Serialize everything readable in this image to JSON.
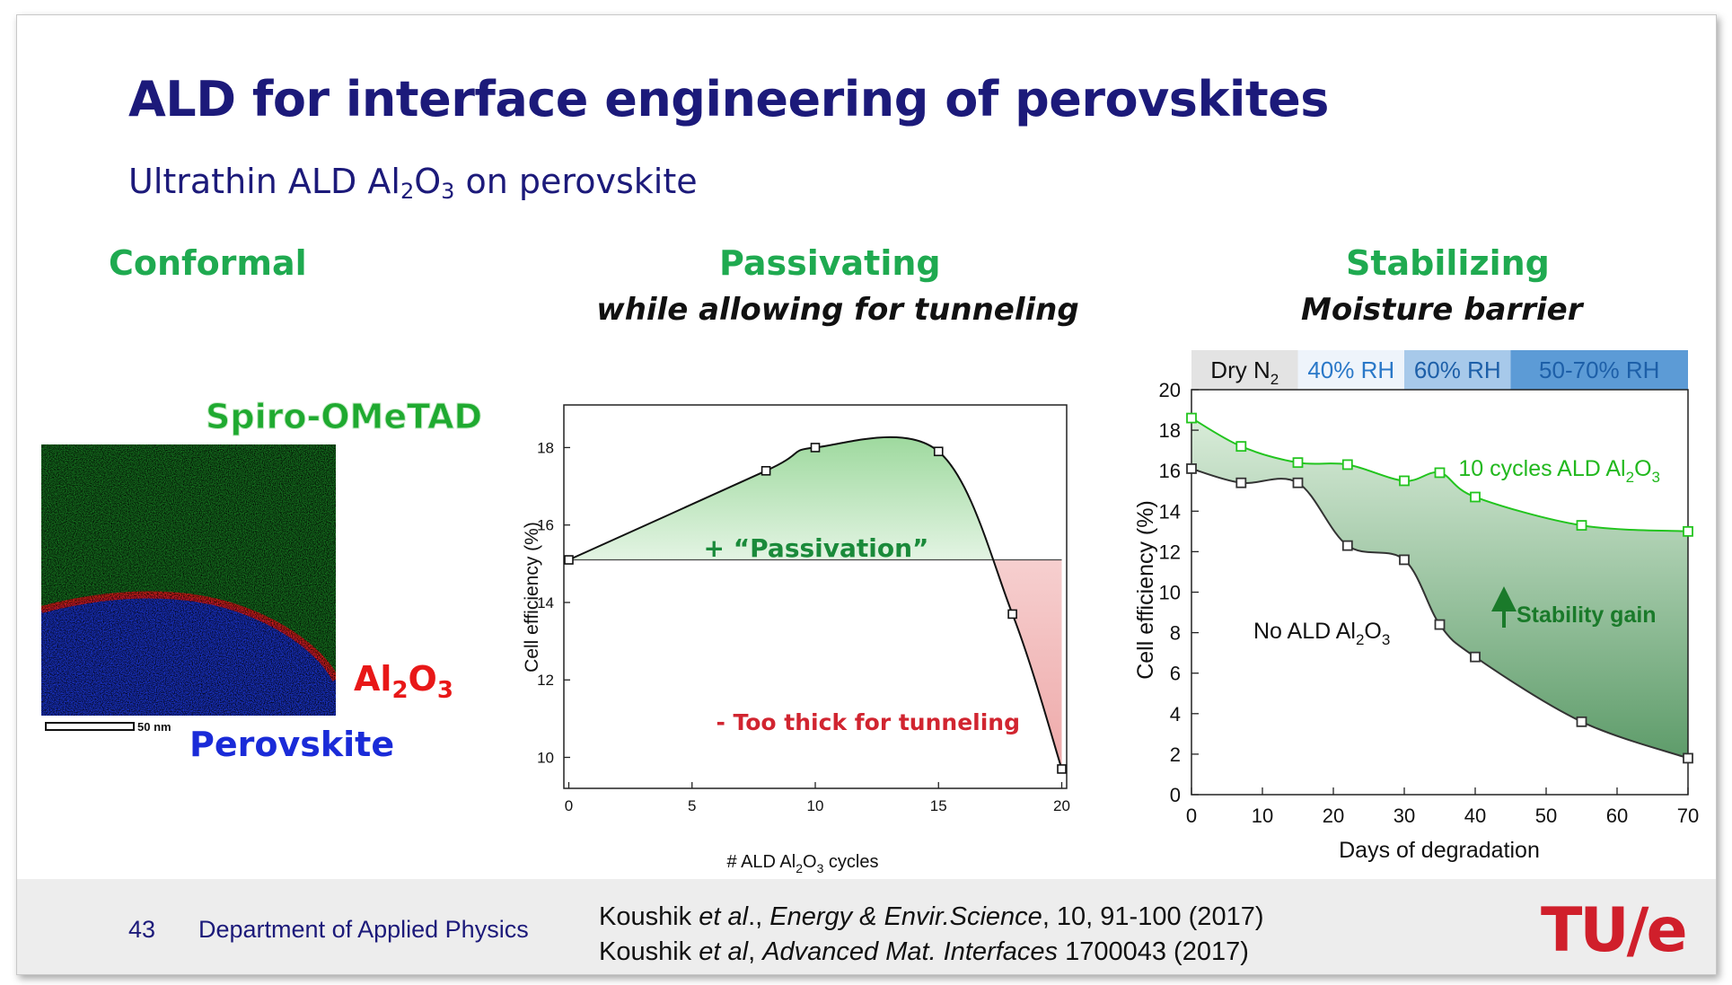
{
  "slide": {
    "title": "ALD for interface engineering of perovskites",
    "subtitle_pre": "Ultrathin ALD Al",
    "subtitle_sub1": "2",
    "subtitle_mid": "O",
    "subtitle_sub2": "3",
    "subtitle_post": " on perovskite"
  },
  "columns": {
    "conformal": {
      "heading": "Conformal"
    },
    "passivating": {
      "heading": "Passivating",
      "subheading": "while allowing for tunneling"
    },
    "stabilizing": {
      "heading": "Stabilizing",
      "subheading": "Moisture barrier"
    }
  },
  "tem_image": {
    "label_top": "Spiro-OMeTAD",
    "label_mid_pre": "Al",
    "label_mid_sub1": "2",
    "label_mid_o": "O",
    "label_mid_sub2": "3",
    "label_bottom": "Perovskite",
    "scale_bar": "50 nm",
    "colors": {
      "spiro": "#1faa30",
      "al2o3": "#e81818",
      "perovskite": "#1a2bd8"
    }
  },
  "chart_data": [
    {
      "type": "line",
      "xlabel_pre": "# ALD Al",
      "xlabel_sub1": "2",
      "xlabel_o": "O",
      "xlabel_sub2": "3",
      "xlabel_post": " cycles",
      "ylabel": "Cell efficiency (%)",
      "xlim": [
        -0.2,
        20.2
      ],
      "ylim": [
        9.2,
        19.1
      ],
      "xticks": [
        "0",
        "5",
        "10",
        "15",
        "20"
      ],
      "yticks": [
        "10",
        "12",
        "14",
        "16",
        "18"
      ],
      "x": [
        0,
        8,
        10,
        15,
        18,
        20
      ],
      "y": [
        15.1,
        17.4,
        18.0,
        17.9,
        13.7,
        9.7
      ],
      "baseline": 15.1,
      "annotations": {
        "passivation": "+ “Passivation”",
        "too_thick": "- Too thick for tunneling"
      },
      "colors": {
        "gain": "#1faa50",
        "loss": "#d12530"
      }
    },
    {
      "type": "line",
      "xlabel": "Days of degradation",
      "ylabel": "Cell efficiency (%)",
      "xlim": [
        0,
        70
      ],
      "ylim": [
        0,
        20
      ],
      "xticks": [
        "0",
        "10",
        "20",
        "30",
        "40",
        "50",
        "60",
        "70"
      ],
      "yticks": [
        "0",
        "2",
        "4",
        "6",
        "8",
        "10",
        "12",
        "14",
        "16",
        "18",
        "20"
      ],
      "series": [
        {
          "name_pre": "10 cycles ALD Al",
          "name_sub1": "2",
          "name_o": "O",
          "name_sub2": "3",
          "color": "#22c41e",
          "x": [
            0,
            7,
            15,
            22,
            30,
            35,
            40,
            55,
            70
          ],
          "y": [
            18.6,
            17.2,
            16.4,
            16.3,
            15.5,
            15.9,
            14.7,
            13.3,
            13.0
          ]
        },
        {
          "name_pre": "No ALD Al",
          "name_sub1": "2",
          "name_o": "O",
          "name_sub2": "3",
          "color": "#333333",
          "x": [
            0,
            7,
            15,
            22,
            30,
            35,
            40,
            55,
            70
          ],
          "y": [
            16.1,
            15.4,
            15.4,
            12.3,
            11.6,
            8.4,
            6.8,
            3.6,
            1.8
          ]
        }
      ],
      "annotation": "Stability gain",
      "conditions": [
        {
          "label": "Dry N",
          "sub": "2",
          "start": 0,
          "end": 15,
          "color": "#e3e3e3",
          "text_color": "#111111"
        },
        {
          "label": "40% RH",
          "sub": "",
          "start": 15,
          "end": 30,
          "color": "#eef4fb",
          "text_color": "#2a78c8"
        },
        {
          "label": "60% RH",
          "sub": "",
          "start": 30,
          "end": 45,
          "color": "#a7c9ea",
          "text_color": "#1d5fa8"
        },
        {
          "label": "50-70% RH",
          "sub": "",
          "start": 45,
          "end": 71,
          "color": "#5c9bd6",
          "text_color": "#1d5fa8"
        }
      ]
    }
  ],
  "footer": {
    "page_number": "43",
    "department": "Department of Applied Physics",
    "ref1_a": "Koushik ",
    "ref1_b": "et al",
    "ref1_c": "., ",
    "ref1_d": "Energy & Envir.Science",
    "ref1_e": ", 10, 91-100 (2017)",
    "ref2_a": "Koushik ",
    "ref2_b": "et al",
    "ref2_c": ", ",
    "ref2_d": "Advanced Mat. Interfaces",
    "ref2_e": " 1700043 (2017)",
    "logo": "TU/e"
  }
}
